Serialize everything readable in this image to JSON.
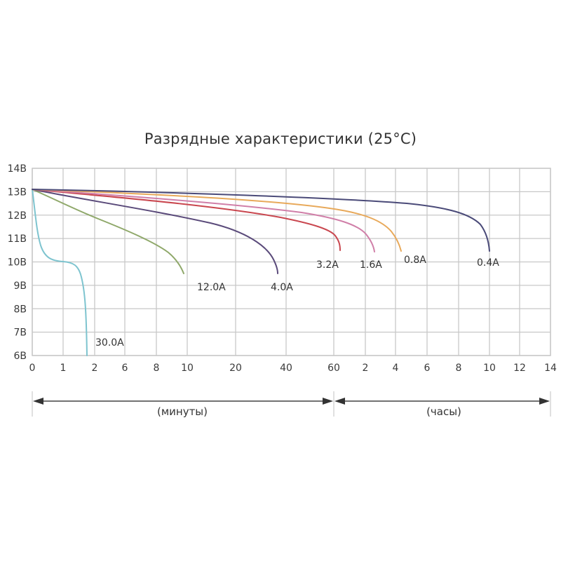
{
  "chart_data": {
    "type": "line",
    "title": "Разрядные характеристики (25°C)",
    "xlabel": "",
    "ylabel": "",
    "y_ticks": [
      "14В",
      "13В",
      "12В",
      "11В",
      "10В",
      "9В",
      "8В",
      "7В",
      "6В"
    ],
    "y_values": [
      14,
      13,
      12,
      11,
      10,
      9,
      8,
      7,
      6
    ],
    "ylim": [
      6,
      14
    ],
    "x_ticks": [
      "0",
      "1",
      "2",
      "6",
      "8",
      "10",
      "20",
      "40",
      "60",
      "2",
      "4",
      "6",
      "8",
      "10",
      "12",
      "14"
    ],
    "x_segments": [
      {
        "label": "(минуты)",
        "from": "0",
        "to": "60",
        "unit": "minutes"
      },
      {
        "label": "(часы)",
        "from": "60 min",
        "to": "14",
        "unit": "hours"
      }
    ],
    "grid": true,
    "legend_position": "inline labels at curve ends",
    "series": [
      {
        "name": "30.0A",
        "color": "#7ec4cf",
        "points": [
          {
            "t": "0 min",
            "v": 13.1
          },
          {
            "t": "0.2 min",
            "v": 11.5
          },
          {
            "t": "0.5 min",
            "v": 10.2
          },
          {
            "t": "1.0 min",
            "v": 10.0
          },
          {
            "t": "1.5 min",
            "v": 9.3
          },
          {
            "t": "1.7 min",
            "v": 7.5
          },
          {
            "t": "1.8 min",
            "v": 6.0
          }
        ]
      },
      {
        "name": "12.0A",
        "color": "#8fa86a",
        "points": [
          {
            "t": "0 min",
            "v": 13.1
          },
          {
            "t": "1 min",
            "v": 12.7
          },
          {
            "t": "2 min",
            "v": 12.1
          },
          {
            "t": "6 min",
            "v": 11.3
          },
          {
            "t": "8 min",
            "v": 10.7
          },
          {
            "t": "10 min",
            "v": 9.6
          }
        ]
      },
      {
        "name": "4.0A",
        "color": "#5a4a7a",
        "points": [
          {
            "t": "0 min",
            "v": 13.1
          },
          {
            "t": "2 min",
            "v": 12.7
          },
          {
            "t": "8 min",
            "v": 12.2
          },
          {
            "t": "20 min",
            "v": 11.6
          },
          {
            "t": "30 min",
            "v": 10.8
          },
          {
            "t": "37 min",
            "v": 9.6
          }
        ]
      },
      {
        "name": "3.2A",
        "color": "#c9474f",
        "points": [
          {
            "t": "0 min",
            "v": 13.1
          },
          {
            "t": "10 min",
            "v": 12.6
          },
          {
            "t": "40 min",
            "v": 11.9
          },
          {
            "t": "60 min",
            "v": 11.2
          },
          {
            "t": "64 min",
            "v": 10.5
          }
        ]
      },
      {
        "name": "1.6A",
        "color": "#d07fa8",
        "points": [
          {
            "t": "0 min",
            "v": 13.1
          },
          {
            "t": "10 min",
            "v": 12.8
          },
          {
            "t": "60 min",
            "v": 12.0
          },
          {
            "t": "2 h",
            "v": 11.5
          },
          {
            "t": "2.6 h",
            "v": 10.5
          }
        ]
      },
      {
        "name": "0.8A",
        "color": "#e8a95a",
        "points": [
          {
            "t": "0 min",
            "v": 13.1
          },
          {
            "t": "20 min",
            "v": 12.8
          },
          {
            "t": "60 min",
            "v": 12.3
          },
          {
            "t": "2 h",
            "v": 12.0
          },
          {
            "t": "3.5 h",
            "v": 11.3
          },
          {
            "t": "4.3 h",
            "v": 10.5
          }
        ]
      },
      {
        "name": "0.4A",
        "color": "#4a4a78",
        "points": [
          {
            "t": "0 min",
            "v": 13.1
          },
          {
            "t": "60 min",
            "v": 12.7
          },
          {
            "t": "4 h",
            "v": 12.5
          },
          {
            "t": "6 h",
            "v": 12.3
          },
          {
            "t": "8 h",
            "v": 11.9
          },
          {
            "t": "10 h",
            "v": 10.5
          }
        ]
      }
    ]
  },
  "labels": {
    "title": "Разрядные характеристики (25°C)",
    "minutes": "(минуты)",
    "hours": "(часы)"
  }
}
